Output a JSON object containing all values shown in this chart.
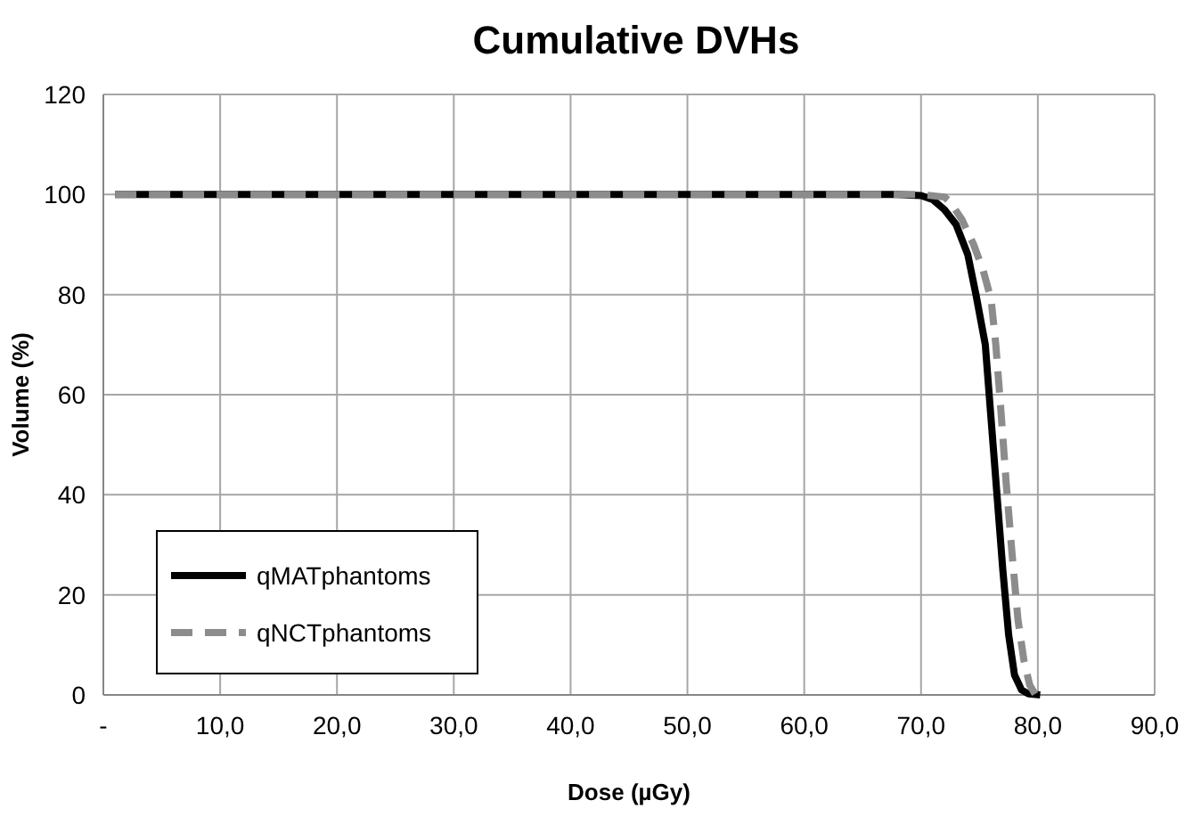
{
  "chart_data": {
    "type": "line",
    "title": "Cumulative DVHs",
    "xlabel": "Dose (µGy)",
    "ylabel": "Volume (%)",
    "xlim": [
      0,
      90
    ],
    "xticks": [
      {
        "value": 0,
        "label": "-"
      },
      {
        "value": 10,
        "label": "10,0"
      },
      {
        "value": 20,
        "label": "20,0"
      },
      {
        "value": 30,
        "label": "30,0"
      },
      {
        "value": 40,
        "label": "40,0"
      },
      {
        "value": 50,
        "label": "50,0"
      },
      {
        "value": 60,
        "label": "60,0"
      },
      {
        "value": 70,
        "label": "70,0"
      },
      {
        "value": 80,
        "label": "80,0"
      },
      {
        "value": 90,
        "label": "90,0"
      }
    ],
    "ylim": [
      0,
      120
    ],
    "yticks": [
      0,
      20,
      40,
      60,
      80,
      100,
      120
    ],
    "grid": true,
    "legend": "bottom left",
    "series": [
      {
        "name": "qMATphantoms",
        "color": "#000000",
        "line_style": "solid",
        "x": [
          1,
          60,
          68,
          70,
          71,
          72,
          73,
          74,
          74.7,
          75.5,
          76,
          76.5,
          77,
          77.5,
          78,
          78.6,
          79.2,
          80.2
        ],
        "values": [
          100,
          100,
          100,
          99.8,
          99,
          97,
          94,
          88,
          80,
          70,
          55,
          40,
          25,
          12,
          4,
          1,
          0.2,
          0
        ]
      },
      {
        "name": "qNCTphantoms",
        "color": "#8c8c8c",
        "line_style": "dashed",
        "x": [
          1,
          60,
          68,
          70,
          72,
          72.5,
          73.5,
          74.5,
          75.3,
          76,
          76.4,
          76.8,
          77.3,
          77.8,
          78.3,
          78.8,
          79.3,
          79.8
        ],
        "values": [
          100,
          100,
          100,
          100,
          99.5,
          98.5,
          95,
          90,
          85,
          79,
          70,
          58,
          42,
          28,
          15,
          7,
          2,
          0
        ]
      }
    ]
  }
}
